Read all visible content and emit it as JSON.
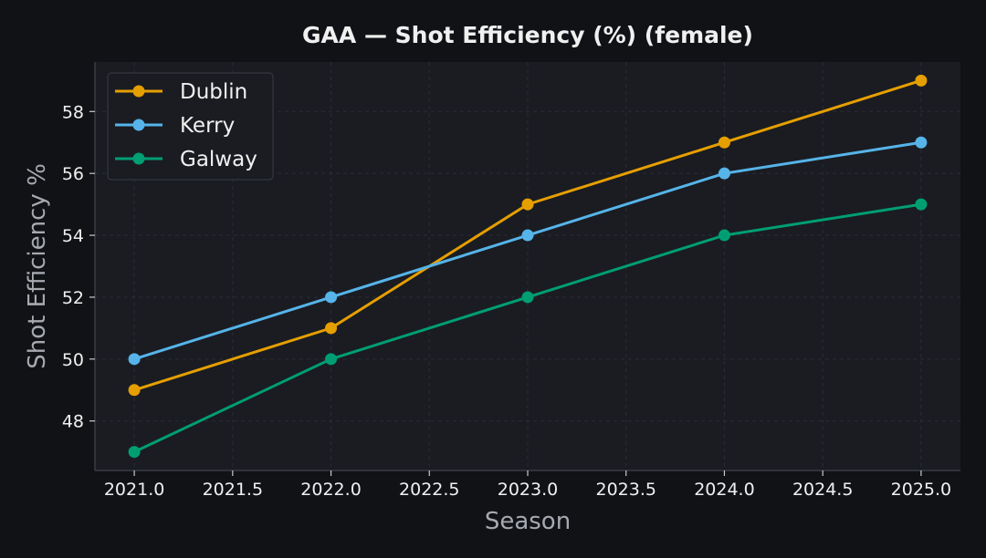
{
  "chart_data": {
    "type": "line",
    "title": "GAA — Shot Efficiency (%) (female)",
    "xlabel": "Season",
    "ylabel": "Shot Efficiency %",
    "x": [
      2021,
      2022,
      2023,
      2024,
      2025
    ],
    "xlim": [
      2020.8,
      2025.2
    ],
    "ylim": [
      46.4,
      59.6
    ],
    "xticks": [
      2021.0,
      2021.5,
      2022.0,
      2022.5,
      2023.0,
      2023.5,
      2024.0,
      2024.5,
      2025.0
    ],
    "xtick_labels": [
      "2021.0",
      "2021.5",
      "2022.0",
      "2022.5",
      "2023.0",
      "2023.5",
      "2024.0",
      "2024.5",
      "2025.0"
    ],
    "yticks": [
      48,
      50,
      52,
      54,
      56,
      58
    ],
    "ytick_labels": [
      "48",
      "50",
      "52",
      "54",
      "56",
      "58"
    ],
    "grid": true,
    "legend_position": "top-left",
    "series": [
      {
        "name": "Dublin",
        "color": "#e69f00",
        "values": [
          49,
          51,
          55,
          57,
          59
        ]
      },
      {
        "name": "Kerry",
        "color": "#56b4e9",
        "values": [
          50,
          52,
          54,
          56,
          57
        ]
      },
      {
        "name": "Galway",
        "color": "#009e73",
        "values": [
          47,
          50,
          52,
          54,
          55
        ]
      }
    ]
  },
  "colors": {
    "background": "#111216",
    "plot_background": "#1a1c22",
    "text": "#f0f0f0",
    "axis_label": "#a6a9b0",
    "grid": "#2a2d35"
  }
}
